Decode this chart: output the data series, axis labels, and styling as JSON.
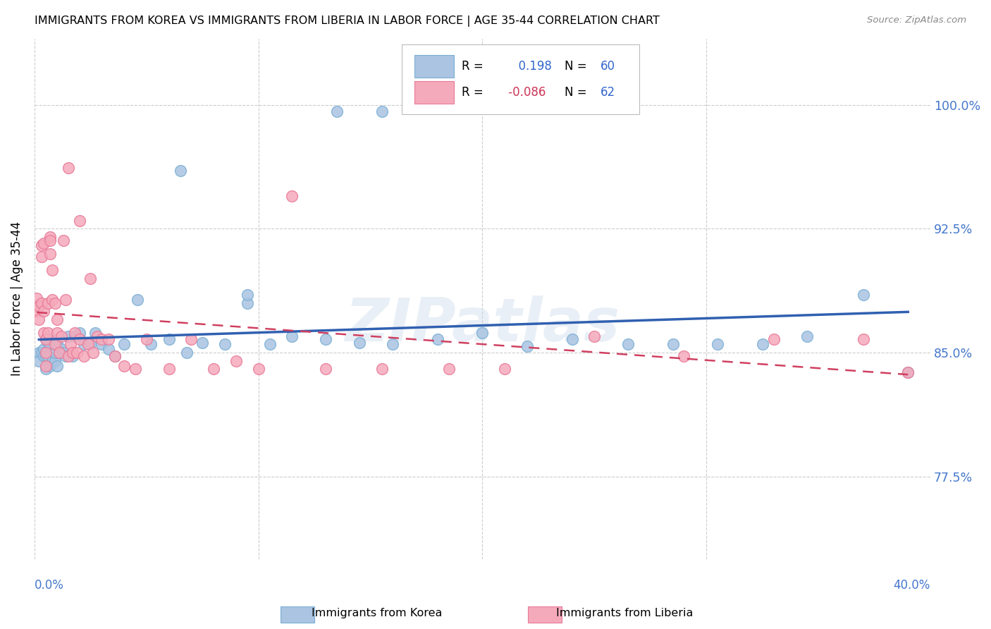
{
  "title": "IMMIGRANTS FROM KOREA VS IMMIGRANTS FROM LIBERIA IN LABOR FORCE | AGE 35-44 CORRELATION CHART",
  "source": "Source: ZipAtlas.com",
  "ylabel": "In Labor Force | Age 35-44",
  "ytick_labels": [
    "77.5%",
    "85.0%",
    "92.5%",
    "100.0%"
  ],
  "ytick_values": [
    0.775,
    0.85,
    0.925,
    1.0
  ],
  "xlim": [
    0.0,
    0.4
  ],
  "ylim": [
    0.725,
    1.04
  ],
  "korea_color": "#aac4e2",
  "liberia_color": "#f5aabb",
  "korea_edge": "#7aafd4",
  "liberia_edge": "#e87a98",
  "korea_line_color": "#3060b0",
  "liberia_line_color": "#d04060",
  "R_korea": 0.198,
  "N_korea": 60,
  "R_liberia": -0.086,
  "N_liberia": 62,
  "watermark": "ZIPatlas",
  "korea_x": [
    0.002,
    0.002,
    0.003,
    0.004,
    0.004,
    0.005,
    0.005,
    0.005,
    0.006,
    0.006,
    0.007,
    0.007,
    0.008,
    0.008,
    0.009,
    0.009,
    0.01,
    0.01,
    0.011,
    0.012,
    0.013,
    0.014,
    0.015,
    0.017,
    0.018,
    0.02,
    0.022,
    0.025,
    0.027,
    0.03,
    0.033,
    0.036,
    0.04,
    0.046,
    0.052,
    0.06,
    0.068,
    0.075,
    0.085,
    0.095,
    0.105,
    0.115,
    0.13,
    0.145,
    0.16,
    0.18,
    0.2,
    0.22,
    0.24,
    0.265,
    0.285,
    0.305,
    0.325,
    0.345,
    0.37,
    0.39,
    0.135,
    0.155,
    0.065,
    0.095
  ],
  "korea_y": [
    0.85,
    0.845,
    0.85,
    0.848,
    0.852,
    0.84,
    0.848,
    0.858,
    0.848,
    0.856,
    0.842,
    0.855,
    0.845,
    0.858,
    0.845,
    0.85,
    0.842,
    0.855,
    0.85,
    0.852,
    0.85,
    0.848,
    0.86,
    0.848,
    0.86,
    0.862,
    0.855,
    0.855,
    0.862,
    0.855,
    0.852,
    0.848,
    0.855,
    0.882,
    0.855,
    0.858,
    0.85,
    0.856,
    0.855,
    0.88,
    0.855,
    0.86,
    0.858,
    0.856,
    0.855,
    0.858,
    0.862,
    0.854,
    0.858,
    0.855,
    0.855,
    0.855,
    0.855,
    0.86,
    0.885,
    0.838,
    0.996,
    0.996,
    0.96,
    0.885
  ],
  "liberia_x": [
    0.001,
    0.001,
    0.002,
    0.002,
    0.003,
    0.003,
    0.003,
    0.004,
    0.004,
    0.004,
    0.005,
    0.005,
    0.005,
    0.006,
    0.006,
    0.007,
    0.007,
    0.007,
    0.008,
    0.008,
    0.009,
    0.009,
    0.01,
    0.01,
    0.011,
    0.012,
    0.013,
    0.014,
    0.015,
    0.016,
    0.017,
    0.018,
    0.019,
    0.02,
    0.022,
    0.024,
    0.026,
    0.028,
    0.03,
    0.033,
    0.036,
    0.04,
    0.045,
    0.05,
    0.06,
    0.07,
    0.08,
    0.09,
    0.1,
    0.115,
    0.13,
    0.155,
    0.185,
    0.21,
    0.25,
    0.29,
    0.33,
    0.37,
    0.015,
    0.02,
    0.025,
    0.39
  ],
  "liberia_y": [
    0.875,
    0.883,
    0.87,
    0.878,
    0.915,
    0.908,
    0.88,
    0.862,
    0.875,
    0.916,
    0.85,
    0.858,
    0.842,
    0.862,
    0.88,
    0.92,
    0.918,
    0.91,
    0.9,
    0.882,
    0.855,
    0.88,
    0.87,
    0.862,
    0.85,
    0.86,
    0.918,
    0.882,
    0.848,
    0.855,
    0.85,
    0.862,
    0.85,
    0.858,
    0.848,
    0.855,
    0.85,
    0.86,
    0.858,
    0.858,
    0.848,
    0.842,
    0.84,
    0.858,
    0.84,
    0.858,
    0.84,
    0.845,
    0.84,
    0.945,
    0.84,
    0.84,
    0.84,
    0.84,
    0.86,
    0.848,
    0.858,
    0.858,
    0.962,
    0.93,
    0.895,
    0.838
  ]
}
